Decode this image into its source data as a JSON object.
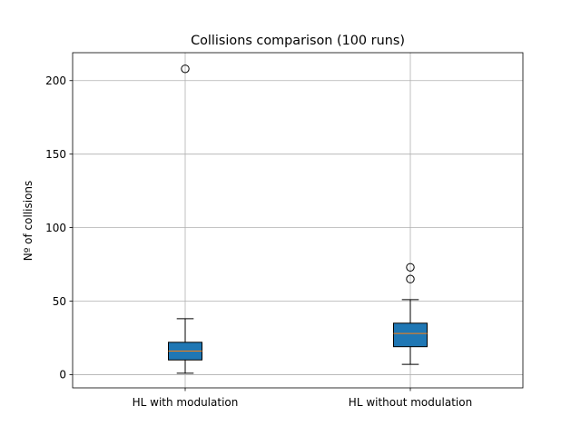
{
  "chart_data": {
    "type": "box",
    "title": "Collisions comparison (100 runs)",
    "xlabel": "",
    "ylabel": "Nº of collisions",
    "ylim": [
      -9,
      219
    ],
    "yticks": [
      0,
      50,
      100,
      150,
      200
    ],
    "ytick_labels": [
      "0",
      "50",
      "100",
      "150",
      "200"
    ],
    "grid": true,
    "categories": [
      "HL with modulation",
      "HL without modulation"
    ],
    "boxes": [
      {
        "label": "HL with modulation",
        "whisker_low": 1,
        "q1": 10,
        "median": 16,
        "q3": 22,
        "whisker_high": 38,
        "outliers": [
          208
        ]
      },
      {
        "label": "HL without modulation",
        "whisker_low": 7,
        "q1": 19,
        "median": 28,
        "q3": 35,
        "whisker_high": 51,
        "outliers": [
          65,
          73
        ]
      }
    ],
    "colors": {
      "box_fill": "#1f77b4",
      "median": "#ff7f0e",
      "grid": "#b0b0b0",
      "edge": "#000000"
    }
  }
}
